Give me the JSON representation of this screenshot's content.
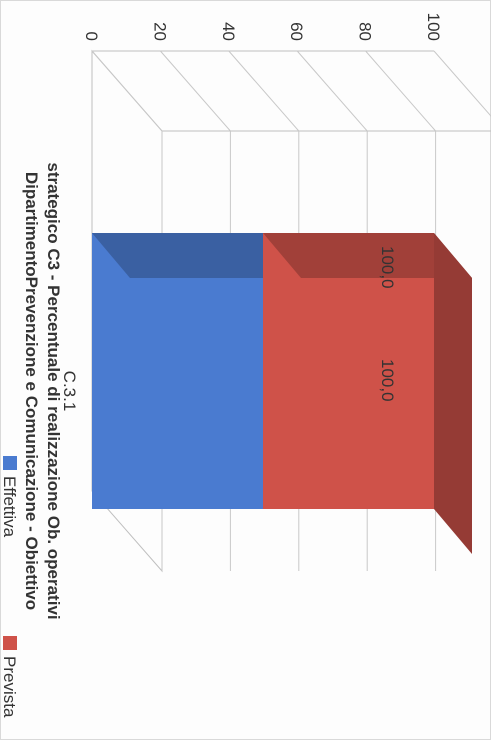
{
  "chart_data": {
    "type": "bar",
    "title_line1": "DipartimentoPrevenzione e Comunicazione - Obiettivo",
    "title_line2": "strategico C3 - Percentuale di realizzazione Ob. operativi",
    "categories": [
      "C.3.1"
    ],
    "series": [
      {
        "name": "Effettiva",
        "values": [
          100.0
        ],
        "label": "100,0",
        "color": "#4a7bd0"
      },
      {
        "name": "Prevista",
        "values": [
          100.0
        ],
        "label": "100,0",
        "color": "#cf5249"
      }
    ],
    "y_ticks": [
      "0",
      "20",
      "40",
      "60",
      "80",
      "100"
    ],
    "ylim": [
      0,
      100
    ],
    "three_d": true,
    "rotated": "90° clockwise",
    "grid": true,
    "legend_position": "bottom"
  }
}
